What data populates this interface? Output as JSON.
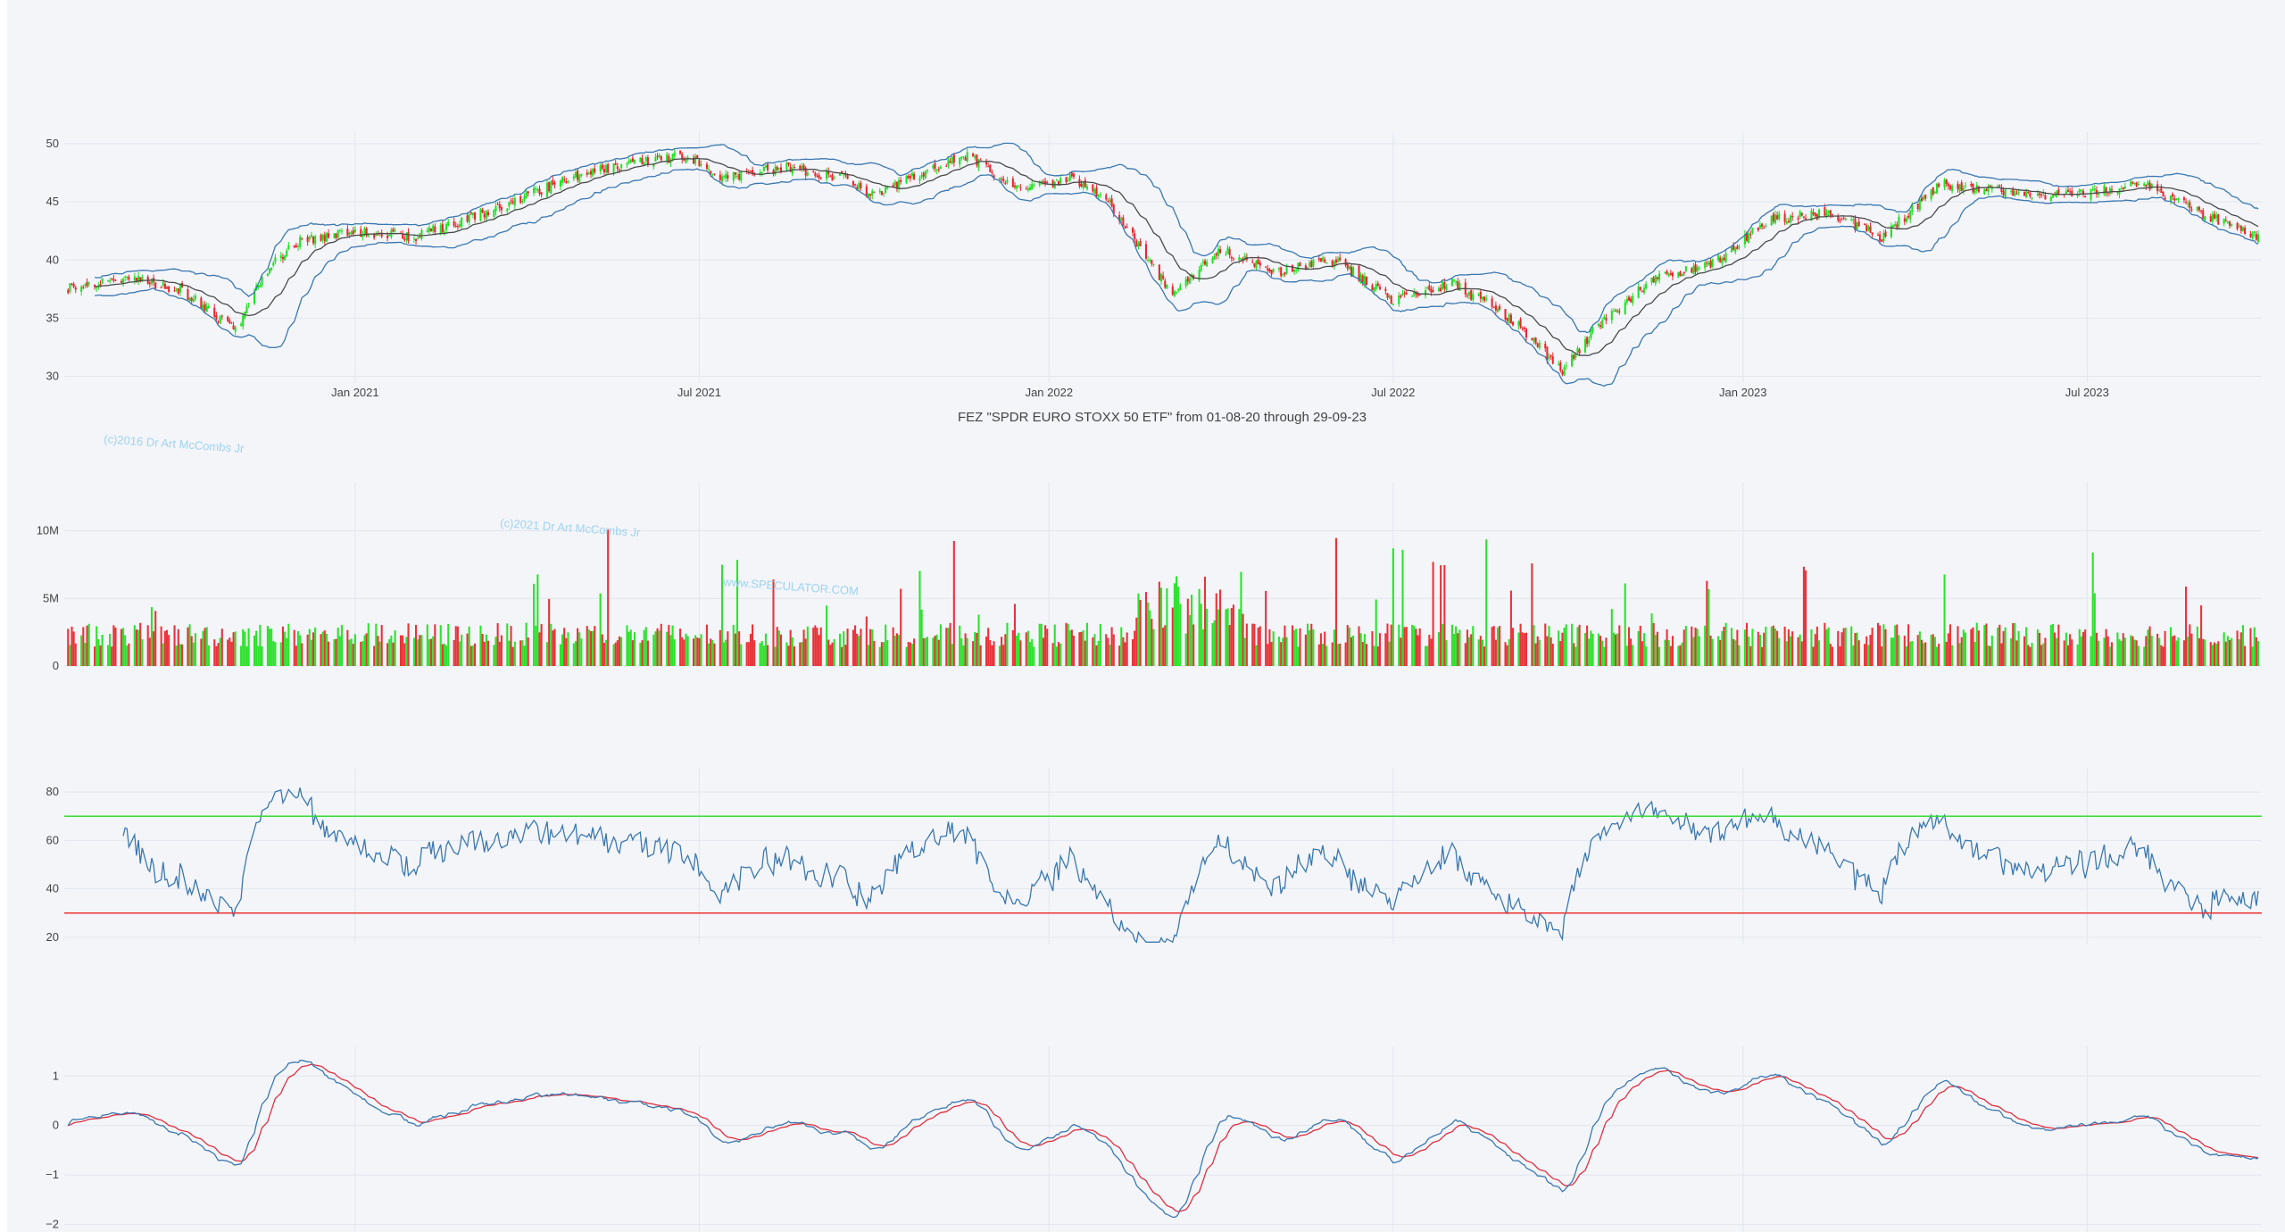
{
  "chart_title": "FEZ \"SPDR EURO STOXX 50 ETF\" from 01-08-20 through 29-09-23",
  "watermarks": [
    "(c)2016 Dr Art McCombs Jr",
    "(c)2021 Dr Art McCombs Jr",
    "www.SPECULATOR.COM"
  ],
  "x_ticks": [
    "Jan 2021",
    "Jul 2021",
    "Jan 2022",
    "Jul 2022",
    "Jan 2023",
    "Jul 2023"
  ],
  "colors": {
    "up": "#22e022",
    "down": "#e8282e",
    "line": "#3b78b0",
    "signal": "#e03040",
    "rsi_upper": "#33dd33",
    "rsi_lower": "#ee3333",
    "background": "#f3f5f9"
  },
  "chart_data": [
    {
      "type": "candlestick",
      "panel": "price",
      "x_range": [
        "2020-08-01",
        "2023-09-29"
      ],
      "yticks": [
        30,
        35,
        40,
        45,
        50
      ],
      "ylim": [
        29.5,
        51
      ],
      "overlays": [
        "bollinger_upper",
        "bollinger_middle",
        "bollinger_lower"
      ],
      "close_approx": {
        "x": [
          "2020-08-01",
          "2020-09-01",
          "2020-10-01",
          "2020-10-30",
          "2020-11-15",
          "2020-12-01",
          "2021-01-01",
          "2021-02-01",
          "2021-03-01",
          "2021-04-01",
          "2021-05-01",
          "2021-06-01",
          "2021-06-25",
          "2021-07-15",
          "2021-08-15",
          "2021-09-15",
          "2021-10-01",
          "2021-11-01",
          "2021-11-20",
          "2021-12-15",
          "2022-01-15",
          "2022-02-01",
          "2022-03-07",
          "2022-04-01",
          "2022-05-01",
          "2022-06-01",
          "2022-07-01",
          "2022-08-01",
          "2022-09-01",
          "2022-09-28",
          "2022-10-15",
          "2022-11-15",
          "2022-12-15",
          "2023-01-15",
          "2023-02-15",
          "2023-03-15",
          "2023-04-15",
          "2023-05-15",
          "2023-06-15",
          "2023-07-31",
          "2023-08-31",
          "2023-09-29"
        ],
        "close": [
          37.5,
          38.5,
          37.5,
          34,
          39,
          41.5,
          42.5,
          42,
          43.5,
          45.5,
          47.5,
          48.5,
          49,
          47,
          48,
          47,
          45.5,
          48,
          49,
          46,
          47,
          45,
          37,
          41,
          39,
          40,
          36.5,
          38,
          35,
          30.5,
          34,
          38.5,
          39.5,
          43.5,
          44,
          42,
          46.5,
          46,
          45.5,
          46.5,
          44,
          42
        ]
      }
    },
    {
      "type": "bar",
      "panel": "volume",
      "yticks_labels": [
        "0",
        "5M",
        "10M"
      ],
      "yticks": [
        0,
        5000000,
        10000000
      ],
      "ylim": [
        0,
        13600000
      ]
    },
    {
      "type": "line",
      "panel": "rsi",
      "yticks": [
        20,
        40,
        60,
        80
      ],
      "ylim": [
        17,
        90
      ],
      "reference_lines": [
        70,
        30
      ]
    },
    {
      "type": "line",
      "panel": "oscillator",
      "yticks_labels": [
        "1",
        "0",
        "−1",
        "−2"
      ],
      "yticks": [
        1,
        0,
        -1,
        -2
      ],
      "ylim": [
        -2.15,
        1.6
      ],
      "series": [
        "oscillator",
        "signal"
      ]
    }
  ]
}
